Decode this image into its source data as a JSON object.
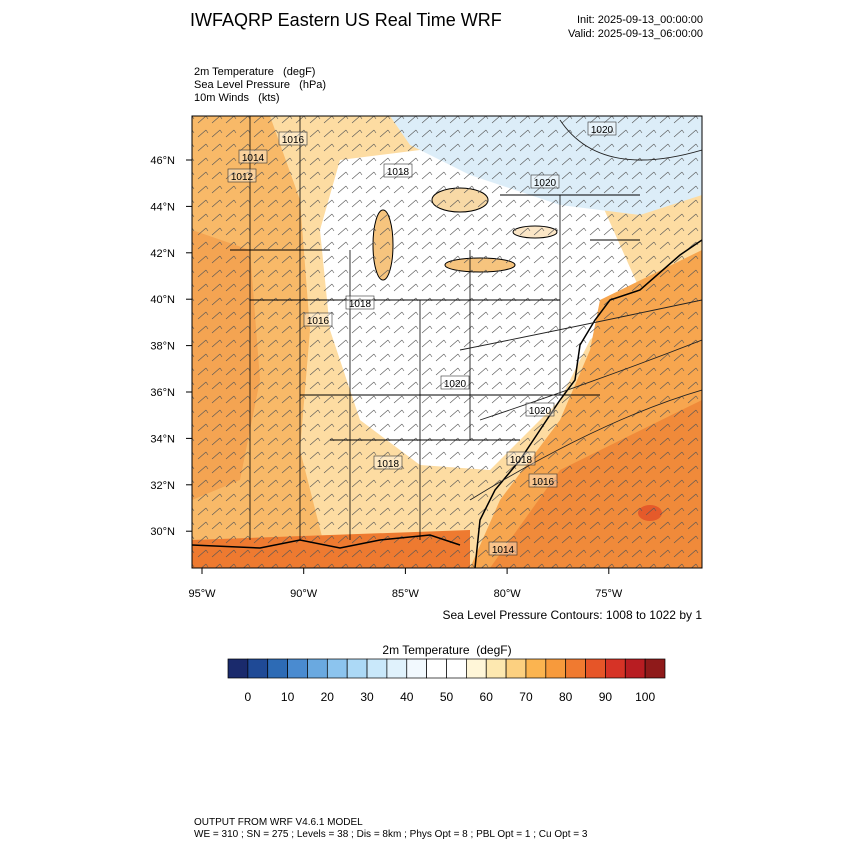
{
  "header": {
    "title": "IWFAQRP Eastern US Real Time WRF",
    "init": "Init: 2025-09-13_00:00:00",
    "valid": "Valid: 2025-09-13_06:00:00"
  },
  "fields": [
    "2m Temperature   (degF)",
    "Sea Level Pressure   (hPa)",
    "10m Winds   (kts)"
  ],
  "map": {
    "lat_labels": [
      "46°N",
      "44°N",
      "42°N",
      "40°N",
      "38°N",
      "36°N",
      "34°N",
      "32°N",
      "30°N"
    ],
    "lon_labels": [
      "95°W",
      "90°W",
      "85°W",
      "80°W",
      "75°W"
    ],
    "isobar_labels": [
      1016,
      1014,
      1012,
      1018,
      1020,
      1020,
      1018,
      1016,
      1020,
      1020,
      1018,
      1018,
      1016,
      1014
    ]
  },
  "contour_note": "Sea Level Pressure Contours: 1008 to 1022 by 1",
  "colorbar": {
    "title": "2m Temperature  (degF)",
    "ticks": [
      0,
      10,
      20,
      30,
      40,
      50,
      60,
      70,
      80,
      90,
      100
    ],
    "colors": [
      "#1a2a6c",
      "#1f4a96",
      "#2d6bb5",
      "#4a8bd0",
      "#6aa9e0",
      "#8cc4ee",
      "#acd9f6",
      "#c9e8fa",
      "#e0f2fc",
      "#f2f9fe",
      "#ffffff",
      "#ffffff",
      "#fff6d8",
      "#fde8b0",
      "#fcd080",
      "#fbb450",
      "#f79a3c",
      "#f07a30",
      "#e65528",
      "#d63326",
      "#b81d22",
      "#8f1a1a"
    ]
  },
  "footer": [
    "OUTPUT FROM WRF V4.6.1 MODEL",
    "WE = 310 ; SN = 275 ; Levels = 38 ; Dis = 8km ; Phys Opt = 8 ; PBL Opt = 1 ; Cu Opt = 3"
  ]
}
